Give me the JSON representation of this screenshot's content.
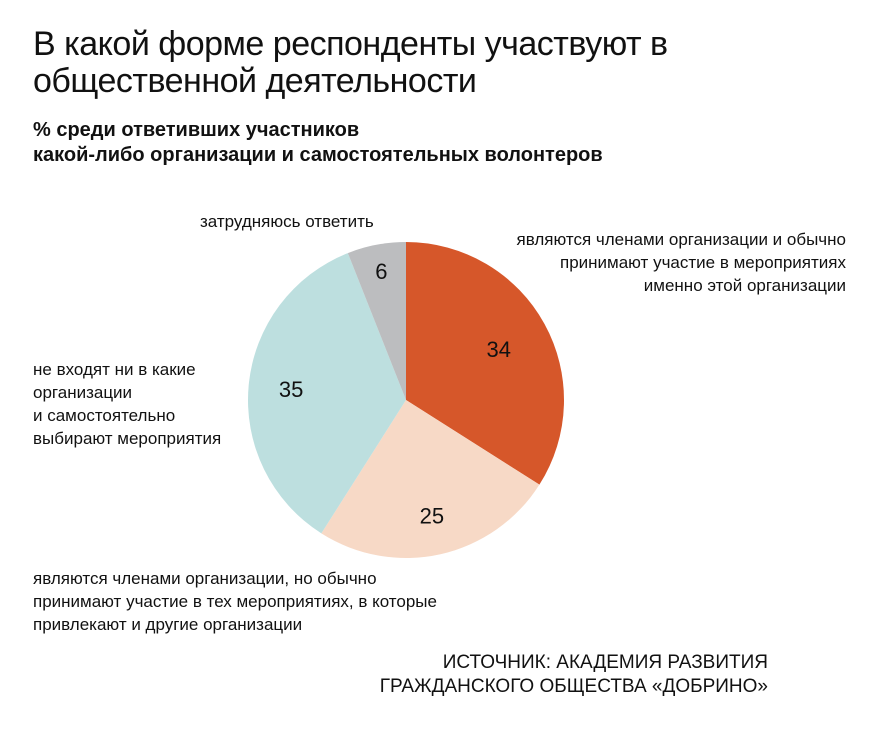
{
  "title": "В какой форме респонденты участвуют в общественной деятельности",
  "subtitle_line1": "% среди ответивших участников",
  "subtitle_line2": "какой-либо организации и самостоятельных волонтеров",
  "source_line1": "ИСТОЧНИК: АКАДЕМИЯ РАЗВИТИЯ",
  "source_line2": "ГРАЖДАНСКОГО ОБЩЕСТВА «ДОБРИНО»",
  "chart_data": {
    "type": "pie",
    "start": "top, clockwise",
    "slices": [
      {
        "label": "являются членами организации и обычно принимают участие в мероприятиях именно этой организации",
        "value": 34,
        "color": "#d6572a"
      },
      {
        "label": "являются членами организации, но обычно принимают участие в тех мероприятиях, в которые привлекают и другие организации",
        "value": 25,
        "color": "#f7d9c6"
      },
      {
        "label": "не входят ни в какие организации и самостоятельно выбирают мероприятия",
        "value": 35,
        "color": "#bddfdf"
      },
      {
        "label": "затрудняюсь ответить",
        "value": 6,
        "color": "#bcbdbf"
      }
    ]
  },
  "labels": {
    "l0": [
      "являются членами организации и обычно",
      "принимают участие в мероприятиях",
      "именно этой организации"
    ],
    "l1": [
      "являются членами организации, но обычно",
      "принимают участие в тех мероприятиях, в которые",
      "привлекают и другие организации"
    ],
    "l2": [
      "не входят ни в какие",
      "организации",
      "и самостоятельно",
      "выбирают мероприятия"
    ],
    "l3": [
      "затрудняюсь ответить"
    ]
  }
}
